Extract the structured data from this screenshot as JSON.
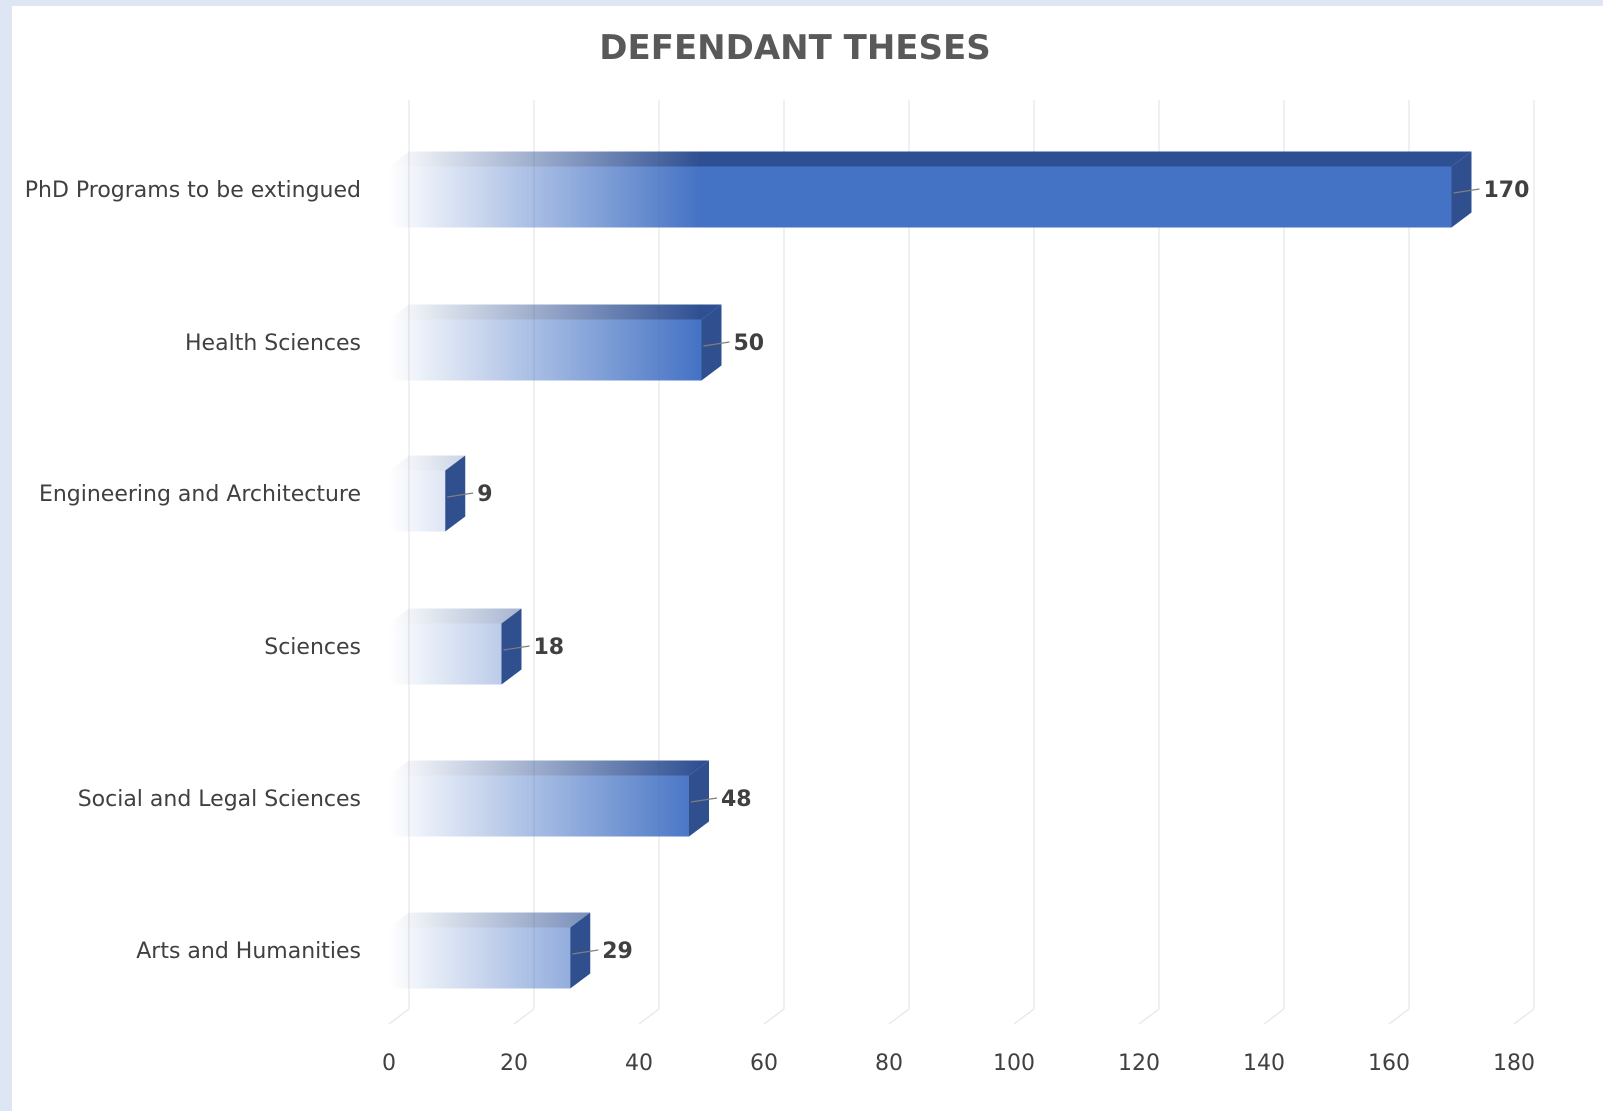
{
  "chart_data": {
    "type": "bar",
    "orientation": "horizontal",
    "title": "DEFENDANT THESES",
    "categories": [
      "PhD Programs to be extingued",
      "Health Sciences",
      "Engineering and Architecture",
      "Sciences",
      "Social and Legal Sciences",
      "Arts and Humanities"
    ],
    "values": [
      170,
      50,
      9,
      18,
      48,
      29
    ],
    "xlim": [
      0,
      180
    ],
    "xticks": [
      0,
      20,
      40,
      60,
      80,
      100,
      120,
      140,
      160,
      180
    ],
    "grid": true,
    "legend": "none",
    "bar_color": "#4472c4",
    "bar_side_color": "#2f4f8f",
    "bar_top_color": "#2e4f92",
    "data_labels": [
      "170",
      "50",
      "9",
      "18",
      "48",
      "29"
    ]
  }
}
